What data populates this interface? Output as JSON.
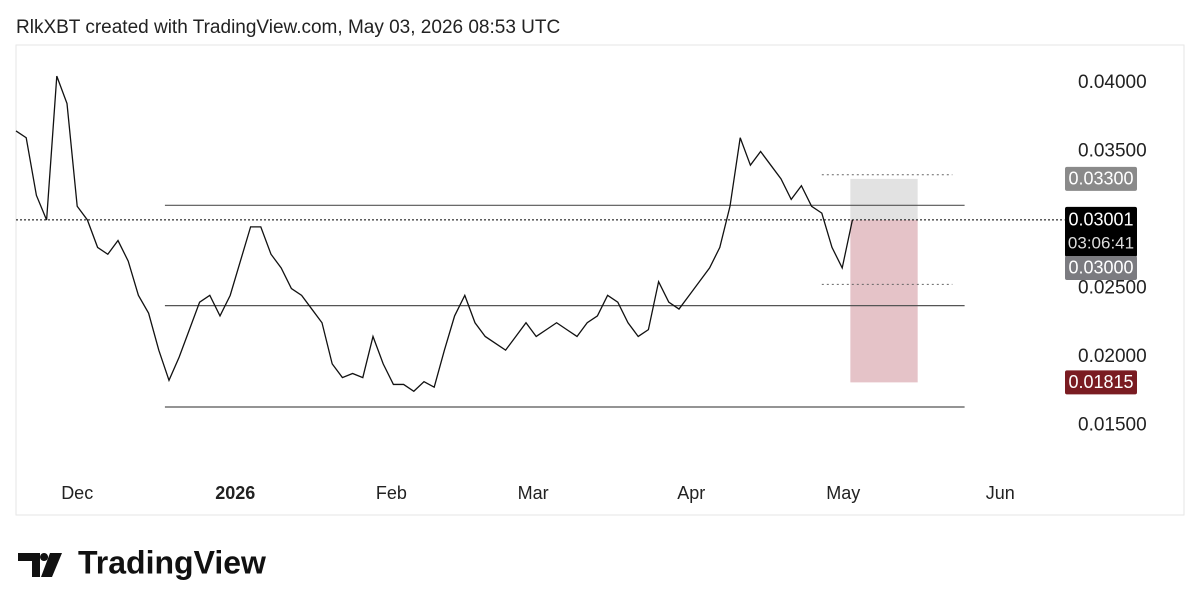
{
  "header": {
    "title": "RlkXBT created with TradingView.com, May 03, 2026 08:53 UTC"
  },
  "footer": {
    "brand": "TradingView"
  },
  "chart_data": {
    "type": "line",
    "color": "#111111",
    "values": [
      0.0365,
      0.036,
      0.0318,
      0.03,
      0.0405,
      0.0385,
      0.031,
      0.03,
      0.028,
      0.0275,
      0.0285,
      0.027,
      0.0245,
      0.0232,
      0.0205,
      0.0183,
      0.02,
      0.022,
      0.024,
      0.0245,
      0.023,
      0.0245,
      0.027,
      0.0295,
      0.0295,
      0.0275,
      0.0265,
      0.025,
      0.0245,
      0.0235,
      0.0225,
      0.0195,
      0.0185,
      0.0188,
      0.0185,
      0.0215,
      0.0195,
      0.018,
      0.018,
      0.0175,
      0.0182,
      0.0178,
      0.0205,
      0.023,
      0.0245,
      0.0225,
      0.0215,
      0.021,
      0.0205,
      0.0215,
      0.0225,
      0.0215,
      0.022,
      0.0225,
      0.022,
      0.0215,
      0.0225,
      0.023,
      0.0245,
      0.024,
      0.0225,
      0.0215,
      0.022,
      0.0255,
      0.024,
      0.0235,
      0.0245,
      0.0255,
      0.0265,
      0.028,
      0.031,
      0.036,
      0.034,
      0.035,
      0.034,
      0.033,
      0.0315,
      0.0325,
      0.031,
      0.0305,
      0.028,
      0.0265,
      0.03
    ],
    "xlim": [
      0,
      102
    ],
    "xticks": [
      {
        "value": 6,
        "label": "Dec"
      },
      {
        "value": 21.5,
        "label": "2026",
        "major": true
      },
      {
        "value": 36.8,
        "label": "Feb"
      },
      {
        "value": 50.7,
        "label": "Mar"
      },
      {
        "value": 66.2,
        "label": "Apr"
      },
      {
        "value": 81.1,
        "label": "May"
      },
      {
        "value": 96.5,
        "label": "Jun"
      }
    ],
    "ylim": [
      0.01139,
      0.04277
    ],
    "yticks": [
      {
        "value": 0.015,
        "label": "0.01500"
      },
      {
        "value": 0.02,
        "label": "0.02000"
      },
      {
        "value": 0.025,
        "label": "0.02500"
      },
      {
        "value": 0.035,
        "label": "0.03500"
      },
      {
        "value": 0.04,
        "label": "0.04000"
      }
    ],
    "levels": [
      {
        "value": 0.03107,
        "from": 14.6,
        "to": 93
      },
      {
        "value": 0.02375,
        "from": 14.6,
        "to": 93
      },
      {
        "value": 0.01635,
        "from": 14.6,
        "to": 93
      }
    ],
    "dotted_levels": [
      {
        "value": 0.0333,
        "from": 79,
        "to": 91.8
      },
      {
        "value": 0.0253,
        "from": 79,
        "to": 91.8
      }
    ],
    "last_price": {
      "value": 0.03001,
      "label": "0.03001",
      "countdown": "03:06:41",
      "color": "#000000"
    },
    "position": {
      "from": 81.8,
      "to": 88.4,
      "stop": {
        "value": 0.033,
        "label": "0.03300",
        "color": "#8a8a8a",
        "zone": "#e2e2e2"
      },
      "entry": {
        "value": 0.03,
        "label": "0.03000",
        "color": "#7b7b80"
      },
      "target": {
        "value": 0.01815,
        "label": "0.01815",
        "color": "#7a1c22",
        "zone": "#e5c3c8"
      }
    }
  }
}
